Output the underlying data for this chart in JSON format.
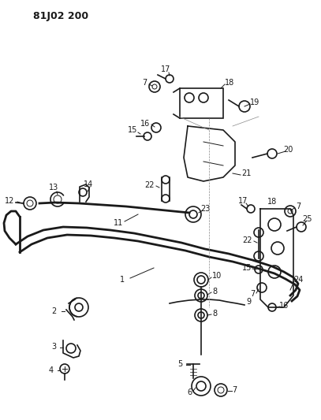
{
  "title": "81J02 200",
  "bg": "#ffffff",
  "lc": "#1a1a1a",
  "fig_w": 4.07,
  "fig_h": 5.33,
  "dpi": 100
}
